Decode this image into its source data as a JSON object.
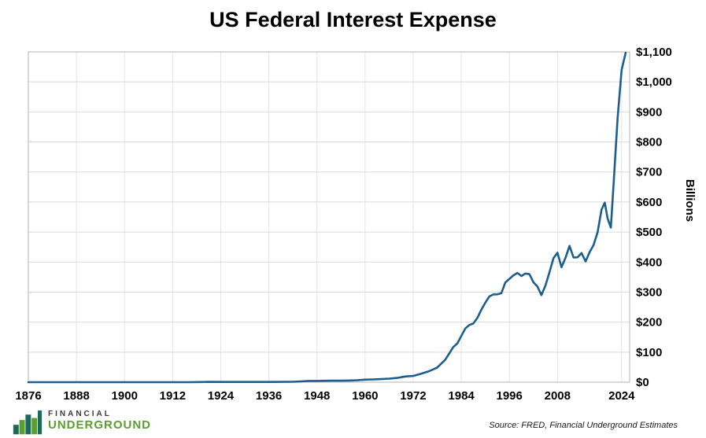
{
  "title": "US Federal Interest Expense",
  "source_note": "Source: FRED, Financial Underground Estimates",
  "logo": {
    "line1": "FINANCIAL",
    "line2": "UNDERGROUND"
  },
  "chart_data": {
    "type": "line",
    "title": "US Federal Interest Expense",
    "xlabel": "",
    "ylabel": "Billions",
    "y_tick_prefix": "$",
    "ylim": [
      0,
      1100
    ],
    "y_tick_step": 100,
    "xlim": [
      1876,
      2026
    ],
    "x_ticks": [
      1876,
      1888,
      1900,
      1912,
      1924,
      1936,
      1948,
      1960,
      1972,
      1984,
      1996,
      2008,
      2024
    ],
    "grid": true,
    "legend": "none",
    "line_color": "#1d5e8f",
    "series": [
      {
        "name": "US Federal Interest Expense ($B)",
        "points": [
          [
            1876,
            0.1
          ],
          [
            1886,
            0.06
          ],
          [
            1896,
            0.04
          ],
          [
            1906,
            0.03
          ],
          [
            1916,
            0.03
          ],
          [
            1919,
            0.6
          ],
          [
            1921,
            1.0
          ],
          [
            1925,
            0.9
          ],
          [
            1929,
            0.7
          ],
          [
            1933,
            0.7
          ],
          [
            1937,
            0.9
          ],
          [
            1940,
            1.1
          ],
          [
            1942,
            1.3
          ],
          [
            1944,
            2.6
          ],
          [
            1946,
            4.2
          ],
          [
            1948,
            4.3
          ],
          [
            1950,
            4.8
          ],
          [
            1952,
            4.9
          ],
          [
            1954,
            5.1
          ],
          [
            1956,
            5.6
          ],
          [
            1958,
            6.2
          ],
          [
            1960,
            8.3
          ],
          [
            1962,
            9.1
          ],
          [
            1964,
            10.2
          ],
          [
            1966,
            11.8
          ],
          [
            1968,
            14.2
          ],
          [
            1970,
            18.9
          ],
          [
            1972,
            20.8
          ],
          [
            1974,
            28.2
          ],
          [
            1976,
            36.6
          ],
          [
            1978,
            48.7
          ],
          [
            1980,
            74.8
          ],
          [
            1981,
            95.5
          ],
          [
            1982,
            117.2
          ],
          [
            1983,
            128.7
          ],
          [
            1984,
            153.9
          ],
          [
            1985,
            178.9
          ],
          [
            1986,
            190.3
          ],
          [
            1987,
            195.4
          ],
          [
            1988,
            214.1
          ],
          [
            1989,
            240.9
          ],
          [
            1990,
            264.7
          ],
          [
            1991,
            285.5
          ],
          [
            1992,
            292.3
          ],
          [
            1993,
            292.5
          ],
          [
            1994,
            296.3
          ],
          [
            1995,
            332.4
          ],
          [
            1996,
            343.9
          ],
          [
            1997,
            355.8
          ],
          [
            1998,
            363.8
          ],
          [
            1999,
            353.5
          ],
          [
            2000,
            362.0
          ],
          [
            2001,
            359.5
          ],
          [
            2002,
            332.5
          ],
          [
            2003,
            318.1
          ],
          [
            2004,
            290.0
          ],
          [
            2005,
            322.0
          ],
          [
            2006,
            366.0
          ],
          [
            2007,
            413.0
          ],
          [
            2008,
            431.0
          ],
          [
            2009,
            383.0
          ],
          [
            2010,
            414.0
          ],
          [
            2011,
            454.0
          ],
          [
            2012,
            415.0
          ],
          [
            2013,
            416.0
          ],
          [
            2014,
            430.0
          ],
          [
            2015,
            402.0
          ],
          [
            2016,
            433.0
          ],
          [
            2017,
            457.0
          ],
          [
            2018,
            500.0
          ],
          [
            2019,
            575.0
          ],
          [
            2019.8,
            598.0
          ],
          [
            2020.5,
            545.0
          ],
          [
            2021.3,
            515.0
          ],
          [
            2022,
            660.0
          ],
          [
            2023,
            880.0
          ],
          [
            2024,
            1040.0
          ],
          [
            2025,
            1097.0
          ]
        ]
      }
    ]
  }
}
